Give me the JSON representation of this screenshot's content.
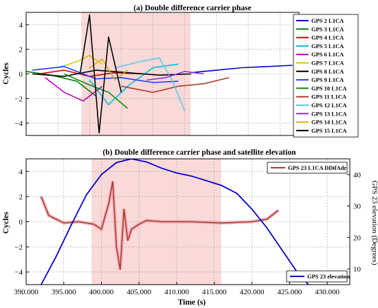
{
  "chart_data": [
    {
      "type": "line",
      "title": "(a) Double difference carrier phase",
      "ylabel": "Cycles",
      "xlim": [
        390000,
        433000
      ],
      "ylim": [
        -5,
        5
      ],
      "yticks": [
        "4",
        "2",
        "0",
        "−2",
        "−4"
      ],
      "grid": true,
      "legend_position": "right",
      "shaded_region": [
        398700,
        415900
      ],
      "series": [
        {
          "name": "GPS  2 L1CA",
          "color": "#0000cc",
          "x": [
            416000,
            420000,
            424000,
            428000,
            432000
          ],
          "values": [
            0.1,
            0.3,
            0.5,
            0.6,
            0.7
          ]
        },
        {
          "name": "GPS  3 L1CA",
          "color": "#008000",
          "x": [
            390000,
            394000,
            398000,
            401000
          ],
          "values": [
            0.2,
            -0.1,
            -0.6,
            -1.8
          ]
        },
        {
          "name": "GPS  4 L1CA",
          "color": "#cc0000",
          "x": [
            392000,
            396000,
            400000,
            404000,
            408000
          ],
          "values": [
            0.0,
            0.3,
            -0.2,
            0.1,
            0.0
          ]
        },
        {
          "name": "GPS  5 L1CA",
          "color": "#00bcd4",
          "x": [
            400000,
            403000,
            406000,
            410000,
            414000
          ],
          "values": [
            -0.5,
            -2.5,
            -1.0,
            0.5,
            0.8
          ]
        },
        {
          "name": "GPS  6 L1CA",
          "color": "#c000c0",
          "x": [
            393000,
            396000,
            399000,
            402000
          ],
          "values": [
            -0.3,
            -1.5,
            -2.2,
            -1.0
          ]
        },
        {
          "name": "GPS  7 L1CA",
          "color": "#cccc00",
          "x": [
            395000,
            398000,
            400000,
            402000
          ],
          "values": [
            0.5,
            1.0,
            1.5,
            0.8
          ]
        },
        {
          "name": "GPS  8 L1CA",
          "color": "#000000",
          "x": [
            391000,
            396000,
            401000,
            406000,
            411000,
            416000
          ],
          "values": [
            0.0,
            -0.2,
            0.3,
            0.1,
            -0.1,
            0.0
          ]
        },
        {
          "name": "GPS  9 L1CA",
          "color": "#1e3cff",
          "x": [
            391000,
            396000,
            401000,
            405000,
            410000,
            414000
          ],
          "values": [
            0.3,
            0.6,
            -0.4,
            -0.3,
            -0.7,
            -0.6
          ]
        },
        {
          "name": "GPS 10 L1CA",
          "color": "#0a8a0a",
          "x": [
            396000,
            400000,
            403000,
            406000
          ],
          "values": [
            0.0,
            -0.9,
            -1.5,
            -2.8
          ]
        },
        {
          "name": "GPS 11 L1CA",
          "color": "#b03a2e",
          "x": [
            405000,
            410000,
            414000,
            418000,
            422000
          ],
          "values": [
            -1.0,
            -1.5,
            -1.0,
            -0.8,
            -0.3
          ]
        },
        {
          "name": "GPS 12 L1CA",
          "color": "#5ec8e0",
          "x": [
            404000,
            408000,
            411000,
            413000,
            415000
          ],
          "values": [
            0.5,
            1.0,
            1.3,
            -0.5,
            -3.0
          ]
        },
        {
          "name": "GPS 13 L1CA",
          "color": "#8a2be2",
          "x": [
            409000,
            412000,
            415000,
            418000
          ],
          "values": [
            -0.5,
            -0.3,
            0.2,
            0.0
          ]
        },
        {
          "name": "GPS 14 L1CA",
          "color": "#d4b000",
          "x": [
            400000,
            402000,
            404000,
            406000
          ],
          "values": [
            0.5,
            1.2,
            -0.5,
            0.3
          ]
        },
        {
          "name": "GPS 15 L1CA",
          "color": "#000000",
          "x": [
            398500,
            400000,
            401500,
            403000,
            405000
          ],
          "values": [
            0.0,
            4.8,
            -4.8,
            3.0,
            -1.5
          ]
        }
      ]
    },
    {
      "type": "line",
      "title": "(b) Double difference carrier phase and satellite elevation",
      "xlabel": "Time (s)",
      "ylabel": "Cycles",
      "ylabel_right": "GPS 23 elevation (Degrees)",
      "xlim": [
        390000,
        433000
      ],
      "ylim": [
        -5,
        5
      ],
      "ylim_right": [
        5,
        45
      ],
      "xticks": [
        "390.000",
        "395.000",
        "400.000",
        "405.000",
        "410.000",
        "415.000",
        "420.000",
        "425.000",
        "430.000"
      ],
      "yticks": [
        "4",
        "2",
        "0",
        "−2",
        "−4"
      ],
      "yticks_right": [
        "40",
        "30",
        "20",
        "10"
      ],
      "grid": true,
      "legend_position": "top-right and bottom-right",
      "shaded_region": [
        398700,
        415900
      ],
      "series": [
        {
          "name": "GPS 23 L1CA DDifAdr",
          "color": "#b03a2e",
          "axis": "left",
          "x": [
            392000,
            393000,
            395000,
            397000,
            399000,
            400000,
            401000,
            401500,
            402000,
            402500,
            403000,
            403500,
            404000,
            405000,
            406000,
            408000,
            412000,
            416000,
            420000,
            422000,
            423500
          ],
          "values": [
            2.0,
            0.5,
            -0.1,
            0.0,
            -0.2,
            -0.6,
            1.5,
            3.2,
            -2.0,
            -3.8,
            1.0,
            -1.5,
            -0.6,
            -0.2,
            0.1,
            0.0,
            0.0,
            -0.1,
            0.0,
            0.2,
            0.9
          ]
        },
        {
          "name": "GPS 23 elevation",
          "color": "#0000cc",
          "axis": "right",
          "x": [
            392000,
            394000,
            396000,
            398000,
            400000,
            402000,
            404000,
            406000,
            408000,
            410000,
            412000,
            414000,
            416000,
            418000,
            420000,
            422000,
            424000,
            426000,
            427500
          ],
          "values": [
            5.0,
            14.0,
            24.0,
            33.5,
            40.0,
            43.8,
            45.0,
            44.0,
            42.0,
            40.5,
            39.5,
            38.0,
            36.5,
            34.0,
            29.0,
            23.0,
            16.0,
            9.0,
            5.0
          ]
        }
      ]
    }
  ]
}
